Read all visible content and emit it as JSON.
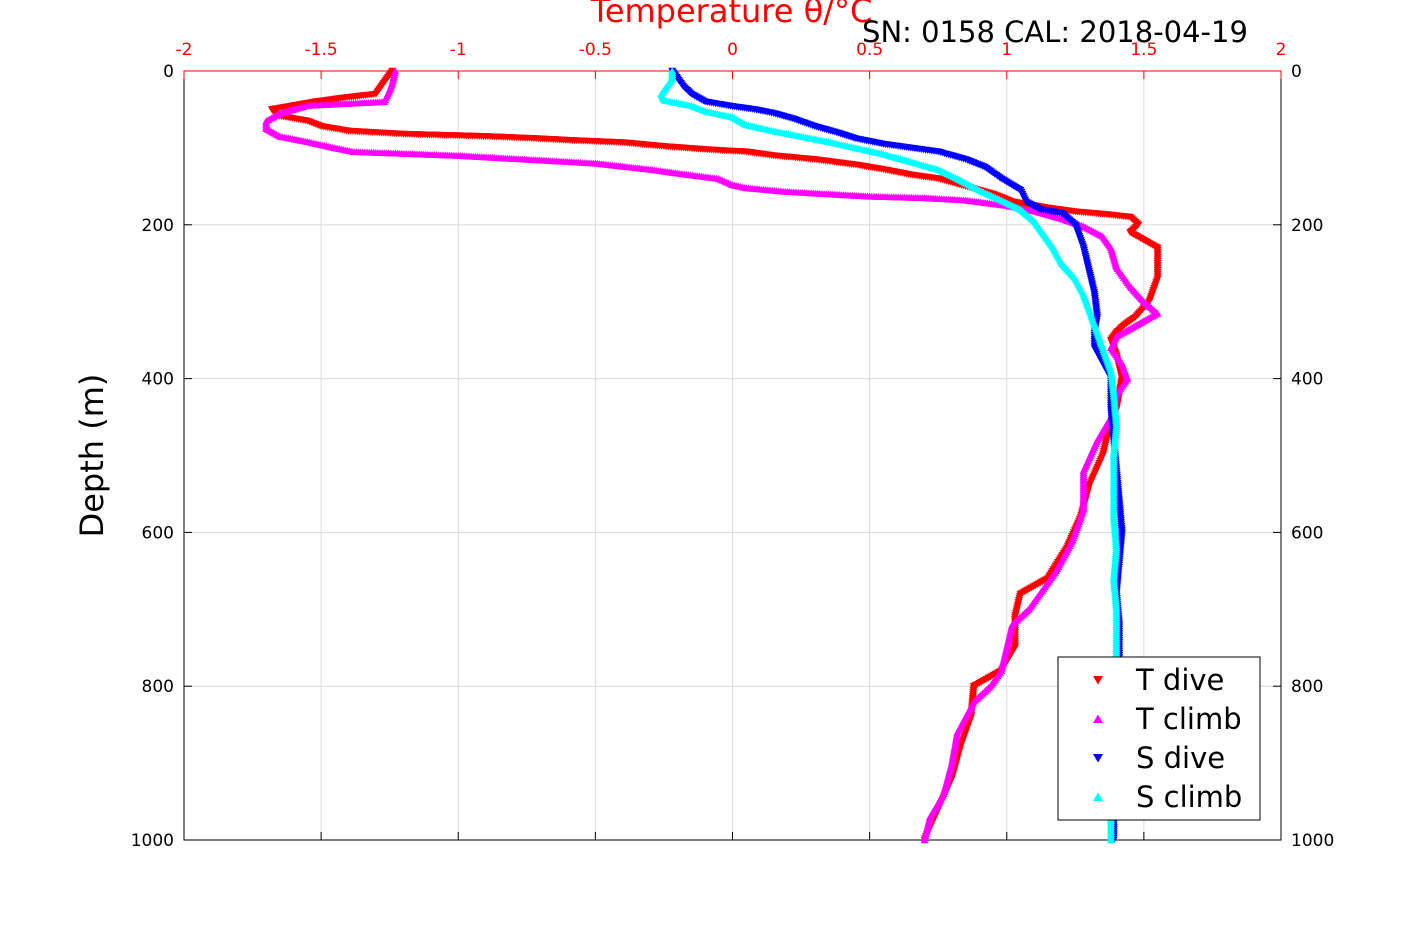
{
  "chart_data": {
    "type": "scatter",
    "title": "SN: 0158  CAL: 2018-04-19",
    "xlabel": "Temperature θ/°C",
    "ylabel": "Depth (m)",
    "xlim": [
      -2,
      2
    ],
    "ylim": [
      0,
      1000
    ],
    "y_reversed": true,
    "x_axis_position": "top",
    "x_ticks": [
      "-2",
      "-1.5",
      "-1",
      "-0.5",
      "0",
      "0.5",
      "1",
      "1.5",
      "2"
    ],
    "y_ticks": [
      "0",
      "200",
      "400",
      "600",
      "800",
      "1000"
    ],
    "grid": true,
    "legend_position": "bottom-right",
    "colors": {
      "axis_x": "#ff0000",
      "axis_y": "#000000",
      "grid": "#dcdcdc"
    },
    "series": [
      {
        "name": "T dive",
        "color": "#ff0000",
        "marker": "triangle-down",
        "points": [
          [
            -1.24,
            0
          ],
          [
            -1.26,
            10
          ],
          [
            -1.28,
            20
          ],
          [
            -1.3,
            30
          ],
          [
            -1.42,
            35
          ],
          [
            -1.52,
            40
          ],
          [
            -1.6,
            45
          ],
          [
            -1.68,
            50
          ],
          [
            -1.66,
            58
          ],
          [
            -1.55,
            65
          ],
          [
            -1.5,
            72
          ],
          [
            -1.4,
            78
          ],
          [
            -1.2,
            82
          ],
          [
            -0.9,
            85
          ],
          [
            -0.7,
            88
          ],
          [
            -0.6,
            90
          ],
          [
            -0.4,
            93
          ],
          [
            -0.25,
            98
          ],
          [
            -0.1,
            102
          ],
          [
            0.05,
            105
          ],
          [
            0.15,
            110
          ],
          [
            0.3,
            115
          ],
          [
            0.45,
            122
          ],
          [
            0.55,
            128
          ],
          [
            0.65,
            135
          ],
          [
            0.75,
            140
          ],
          [
            0.85,
            150
          ],
          [
            0.95,
            160
          ],
          [
            1.02,
            170
          ],
          [
            1.15,
            178
          ],
          [
            1.25,
            183
          ],
          [
            1.35,
            186
          ],
          [
            1.45,
            190
          ],
          [
            1.48,
            200
          ],
          [
            1.45,
            210
          ],
          [
            1.5,
            220
          ],
          [
            1.55,
            230
          ],
          [
            1.55,
            250
          ],
          [
            1.55,
            270
          ],
          [
            1.53,
            290
          ],
          [
            1.52,
            300
          ],
          [
            1.47,
            320
          ],
          [
            1.43,
            330
          ],
          [
            1.4,
            340
          ],
          [
            1.38,
            350
          ],
          [
            1.4,
            370
          ],
          [
            1.42,
            400
          ],
          [
            1.4,
            440
          ],
          [
            1.37,
            470
          ],
          [
            1.35,
            500
          ],
          [
            1.3,
            540
          ],
          [
            1.27,
            580
          ],
          [
            1.22,
            620
          ],
          [
            1.15,
            660
          ],
          [
            1.05,
            680
          ],
          [
            1.03,
            710
          ],
          [
            1.03,
            750
          ],
          [
            0.98,
            780
          ],
          [
            0.88,
            800
          ],
          [
            0.87,
            840
          ],
          [
            0.83,
            880
          ],
          [
            0.8,
            920
          ],
          [
            0.75,
            960
          ],
          [
            0.7,
            1000
          ]
        ]
      },
      {
        "name": "T climb",
        "color": "#ff00ff",
        "marker": "triangle-up",
        "points": [
          [
            -1.23,
            0
          ],
          [
            -1.24,
            15
          ],
          [
            -1.25,
            25
          ],
          [
            -1.27,
            40
          ],
          [
            -1.55,
            45
          ],
          [
            -1.65,
            55
          ],
          [
            -1.7,
            65
          ],
          [
            -1.7,
            75
          ],
          [
            -1.65,
            85
          ],
          [
            -1.55,
            92
          ],
          [
            -1.45,
            100
          ],
          [
            -1.38,
            105
          ],
          [
            -1.0,
            110
          ],
          [
            -0.75,
            115
          ],
          [
            -0.5,
            120
          ],
          [
            -0.3,
            128
          ],
          [
            -0.2,
            133
          ],
          [
            -0.05,
            140
          ],
          [
            0.0,
            148
          ],
          [
            0.05,
            152
          ],
          [
            0.2,
            157
          ],
          [
            0.35,
            160
          ],
          [
            0.5,
            163
          ],
          [
            0.7,
            165
          ],
          [
            0.85,
            168
          ],
          [
            1.0,
            175
          ],
          [
            1.1,
            182
          ],
          [
            1.2,
            192
          ],
          [
            1.28,
            202
          ],
          [
            1.35,
            215
          ],
          [
            1.38,
            230
          ],
          [
            1.4,
            255
          ],
          [
            1.45,
            280
          ],
          [
            1.5,
            300
          ],
          [
            1.55,
            315
          ],
          [
            1.5,
            325
          ],
          [
            1.45,
            335
          ],
          [
            1.4,
            345
          ],
          [
            1.38,
            360
          ],
          [
            1.42,
            380
          ],
          [
            1.44,
            400
          ],
          [
            1.4,
            420
          ],
          [
            1.38,
            450
          ],
          [
            1.33,
            480
          ],
          [
            1.28,
            520
          ],
          [
            1.28,
            570
          ],
          [
            1.24,
            610
          ],
          [
            1.18,
            650
          ],
          [
            1.12,
            680
          ],
          [
            1.08,
            700
          ],
          [
            1.02,
            720
          ],
          [
            1.0,
            750
          ],
          [
            0.98,
            780
          ],
          [
            0.94,
            800
          ],
          [
            0.88,
            820
          ],
          [
            0.82,
            860
          ],
          [
            0.8,
            900
          ],
          [
            0.77,
            940
          ],
          [
            0.72,
            970
          ],
          [
            0.7,
            1000
          ]
        ]
      },
      {
        "name": "S dive",
        "color": "#0000ff",
        "marker": "triangle-down",
        "points": [
          [
            -0.22,
            0
          ],
          [
            -0.2,
            10
          ],
          [
            -0.18,
            20
          ],
          [
            -0.15,
            30
          ],
          [
            -0.1,
            40
          ],
          [
            0.0,
            46
          ],
          [
            0.08,
            50
          ],
          [
            0.15,
            55
          ],
          [
            0.22,
            62
          ],
          [
            0.3,
            72
          ],
          [
            0.38,
            80
          ],
          [
            0.45,
            88
          ],
          [
            0.55,
            95
          ],
          [
            0.65,
            100
          ],
          [
            0.75,
            105
          ],
          [
            0.85,
            115
          ],
          [
            0.92,
            125
          ],
          [
            0.98,
            140
          ],
          [
            1.05,
            155
          ],
          [
            1.07,
            170
          ],
          [
            1.12,
            180
          ],
          [
            1.2,
            185
          ],
          [
            1.25,
            200
          ],
          [
            1.28,
            230
          ],
          [
            1.3,
            260
          ],
          [
            1.32,
            290
          ],
          [
            1.33,
            320
          ],
          [
            1.32,
            340
          ],
          [
            1.32,
            360
          ],
          [
            1.35,
            380
          ],
          [
            1.38,
            400
          ],
          [
            1.38,
            440
          ],
          [
            1.39,
            480
          ],
          [
            1.4,
            520
          ],
          [
            1.41,
            560
          ],
          [
            1.42,
            600
          ],
          [
            1.41,
            640
          ],
          [
            1.4,
            680
          ],
          [
            1.41,
            720
          ],
          [
            1.41,
            760
          ],
          [
            1.41,
            800
          ],
          [
            1.4,
            850
          ],
          [
            1.39,
            900
          ],
          [
            1.39,
            950
          ],
          [
            1.39,
            1000
          ]
        ]
      },
      {
        "name": "S climb",
        "color": "#00ffff",
        "marker": "triangle-up",
        "points": [
          [
            -0.22,
            0
          ],
          [
            -0.22,
            10
          ],
          [
            -0.24,
            20
          ],
          [
            -0.26,
            30
          ],
          [
            -0.25,
            38
          ],
          [
            -0.15,
            45
          ],
          [
            -0.1,
            52
          ],
          [
            0.0,
            60
          ],
          [
            0.05,
            70
          ],
          [
            0.15,
            78
          ],
          [
            0.25,
            85
          ],
          [
            0.35,
            92
          ],
          [
            0.45,
            100
          ],
          [
            0.55,
            108
          ],
          [
            0.65,
            118
          ],
          [
            0.75,
            128
          ],
          [
            0.82,
            140
          ],
          [
            0.9,
            155
          ],
          [
            0.98,
            168
          ],
          [
            1.05,
            180
          ],
          [
            1.1,
            195
          ],
          [
            1.13,
            210
          ],
          [
            1.17,
            230
          ],
          [
            1.2,
            250
          ],
          [
            1.25,
            270
          ],
          [
            1.28,
            290
          ],
          [
            1.3,
            310
          ],
          [
            1.32,
            330
          ],
          [
            1.34,
            350
          ],
          [
            1.36,
            370
          ],
          [
            1.38,
            390
          ],
          [
            1.39,
            420
          ],
          [
            1.4,
            460
          ],
          [
            1.39,
            500
          ],
          [
            1.39,
            540
          ],
          [
            1.39,
            580
          ],
          [
            1.4,
            620
          ],
          [
            1.39,
            660
          ],
          [
            1.4,
            700
          ],
          [
            1.4,
            740
          ],
          [
            1.4,
            780
          ],
          [
            1.39,
            820
          ],
          [
            1.39,
            860
          ],
          [
            1.39,
            900
          ],
          [
            1.38,
            950
          ],
          [
            1.38,
            1000
          ]
        ]
      }
    ]
  }
}
